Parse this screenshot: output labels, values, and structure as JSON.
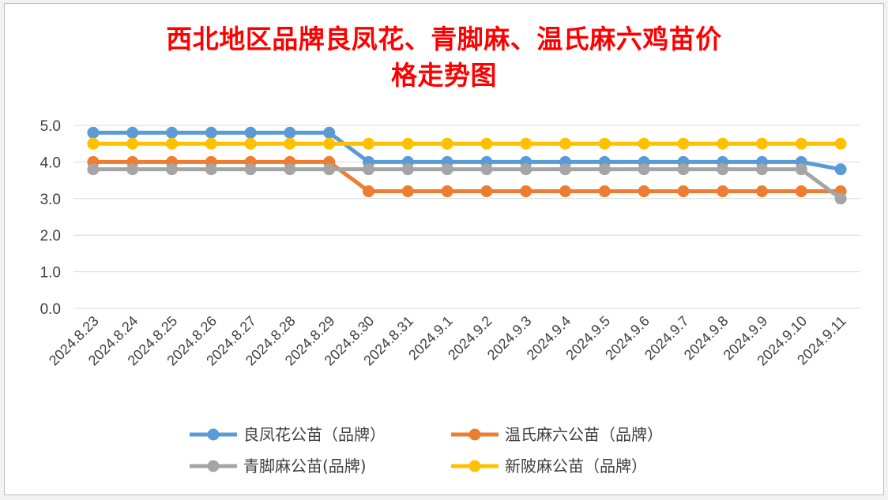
{
  "chart_data": {
    "type": "line",
    "title_line1": "西北地区品牌良凤花、青脚麻、温氏麻六鸡苗价",
    "title_line2": "格走势图",
    "categories": [
      "2024.8.23",
      "2024.8.24",
      "2024.8.25",
      "2024.8.26",
      "2024.8.27",
      "2024.8.28",
      "2024.8.29",
      "2024.8.30",
      "2024.8.31",
      "2024.9.1",
      "2024.9.2",
      "2024.9.3",
      "2024.9.4",
      "2024.9.5",
      "2024.9.6",
      "2024.9.7",
      "2024.9.8",
      "2024.9.9",
      "2024.9.10",
      "2024.9.11"
    ],
    "ylim": [
      0,
      5
    ],
    "yticks": [
      "0.0",
      "1.0",
      "2.0",
      "3.0",
      "4.0",
      "5.0"
    ],
    "grid": true,
    "legend_position": "bottom",
    "series": [
      {
        "name": "良凤花公苗（品牌）",
        "color": "#5b9bd5",
        "values": [
          4.8,
          4.8,
          4.8,
          4.8,
          4.8,
          4.8,
          4.8,
          4.0,
          4.0,
          4.0,
          4.0,
          4.0,
          4.0,
          4.0,
          4.0,
          4.0,
          4.0,
          4.0,
          4.0,
          3.8
        ]
      },
      {
        "name": "温氏麻六公苗（品牌）",
        "color": "#ed7d31",
        "values": [
          4.0,
          4.0,
          4.0,
          4.0,
          4.0,
          4.0,
          4.0,
          3.2,
          3.2,
          3.2,
          3.2,
          3.2,
          3.2,
          3.2,
          3.2,
          3.2,
          3.2,
          3.2,
          3.2,
          3.2
        ]
      },
      {
        "name": "青脚麻公苗(品牌)",
        "color": "#a5a5a5",
        "values": [
          3.8,
          3.8,
          3.8,
          3.8,
          3.8,
          3.8,
          3.8,
          3.8,
          3.8,
          3.8,
          3.8,
          3.8,
          3.8,
          3.8,
          3.8,
          3.8,
          3.8,
          3.8,
          3.8,
          3.0
        ]
      },
      {
        "name": "新陂麻公苗（品牌）",
        "color": "#ffc000",
        "values": [
          4.5,
          4.5,
          4.5,
          4.5,
          4.5,
          4.5,
          4.5,
          4.5,
          4.5,
          4.5,
          4.5,
          4.5,
          4.5,
          4.5,
          4.5,
          4.5,
          4.5,
          4.5,
          4.5,
          4.5
        ]
      }
    ]
  }
}
